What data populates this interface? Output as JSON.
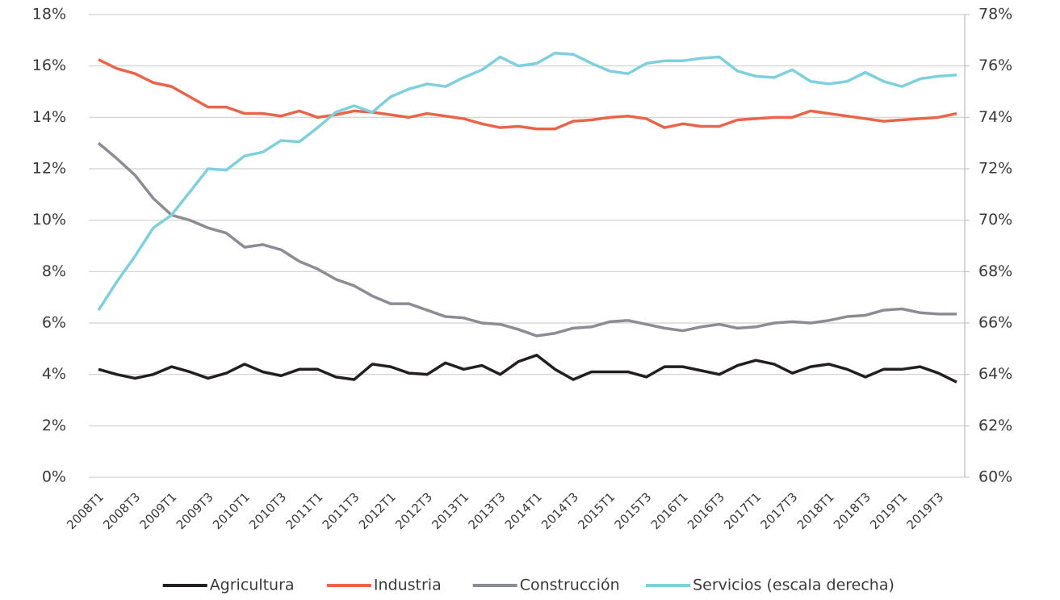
{
  "chart_data": {
    "type": "line",
    "categories": [
      "2008T1",
      null,
      "2008T3",
      null,
      "2009T1",
      null,
      "2009T3",
      null,
      "2010T1",
      null,
      "2010T3",
      null,
      "2011T1",
      null,
      "2011T3",
      null,
      "2012T1",
      null,
      "2012T3",
      null,
      "2013T1",
      null,
      "2013T3",
      null,
      "2014T1",
      null,
      "2014T3",
      null,
      "2015T1",
      null,
      "2015T3",
      null,
      "2016T1",
      null,
      "2016T3",
      null,
      "2017T1",
      null,
      "2017T3",
      null,
      "2018T1",
      null,
      "2018T3",
      null,
      "2019T1",
      null,
      "2019T3",
      null
    ],
    "series": [
      {
        "name": "Agricultura",
        "color": "#231f20",
        "values": [
          4.2,
          4.0,
          3.85,
          4.0,
          4.3,
          4.1,
          3.85,
          4.05,
          4.4,
          4.1,
          3.95,
          4.2,
          4.2,
          3.9,
          3.8,
          4.4,
          4.3,
          4.05,
          4.0,
          4.45,
          4.2,
          4.35,
          4.0,
          4.5,
          4.75,
          4.2,
          3.8,
          4.1,
          4.1,
          4.1,
          3.9,
          4.3,
          4.3,
          4.15,
          4.0,
          4.35,
          4.55,
          4.4,
          4.05,
          4.3,
          4.4,
          4.2,
          3.9,
          4.2,
          4.2,
          4.3,
          4.05,
          3.7
        ]
      },
      {
        "name": "Industria",
        "color": "#e8654a",
        "values": [
          16.25,
          15.9,
          15.7,
          15.35,
          15.2,
          14.8,
          14.4,
          14.4,
          14.15,
          14.15,
          14.05,
          14.25,
          14.0,
          14.1,
          14.25,
          14.2,
          14.1,
          14.0,
          14.15,
          14.05,
          13.95,
          13.75,
          13.6,
          13.65,
          13.55,
          13.55,
          13.85,
          13.9,
          14.0,
          14.05,
          13.95,
          13.6,
          13.75,
          13.65,
          13.65,
          13.9,
          13.95,
          14.0,
          14.0,
          14.25,
          14.15,
          14.05,
          13.95,
          13.85,
          13.9,
          13.95,
          14.0,
          14.15
        ]
      },
      {
        "name": "Construcción",
        "color": "#8c8c94",
        "values": [
          13.0,
          12.4,
          11.75,
          10.85,
          10.2,
          10.0,
          9.7,
          9.5,
          8.95,
          9.05,
          8.85,
          8.4,
          8.1,
          7.7,
          7.45,
          7.05,
          6.75,
          6.75,
          6.5,
          6.25,
          6.2,
          6.0,
          5.95,
          5.75,
          5.5,
          5.6,
          5.8,
          5.85,
          6.05,
          6.1,
          5.95,
          5.8,
          5.7,
          5.85,
          5.95,
          5.8,
          5.85,
          6.0,
          6.05,
          6.0,
          6.1,
          6.25,
          6.3,
          6.5,
          6.55,
          6.4,
          6.35,
          6.35
        ]
      },
      {
        "name": "Servicios (escala derecha)",
        "color": "#7fd0dc",
        "axis": "y2",
        "values": [
          66.5,
          67.6,
          68.6,
          69.7,
          70.2,
          71.1,
          72.0,
          71.95,
          72.5,
          72.65,
          73.1,
          73.05,
          73.6,
          74.2,
          74.45,
          74.2,
          74.8,
          75.1,
          75.3,
          75.2,
          75.55,
          75.85,
          76.35,
          76.0,
          76.1,
          76.5,
          76.45,
          76.1,
          75.8,
          75.7,
          76.1,
          76.2,
          76.2,
          76.3,
          76.35,
          75.8,
          75.6,
          75.55,
          75.85,
          75.4,
          75.3,
          75.4,
          75.75,
          75.4,
          75.2,
          75.5,
          75.6,
          75.65
        ]
      }
    ],
    "ylim": [
      0,
      18
    ],
    "yticks": [
      {
        "value": 0,
        "label": "0%"
      },
      {
        "value": 2,
        "label": "2%"
      },
      {
        "value": 4,
        "label": "4%"
      },
      {
        "value": 6,
        "label": "6%"
      },
      {
        "value": 8,
        "label": "8%"
      },
      {
        "value": 10,
        "label": "10%"
      },
      {
        "value": 12,
        "label": "12%"
      },
      {
        "value": 14,
        "label": "14%"
      },
      {
        "value": 16,
        "label": "16%"
      },
      {
        "value": 18,
        "label": "18%"
      }
    ],
    "y2lim": [
      60,
      78
    ],
    "y2ticks": [
      {
        "value": 60,
        "label": "60%"
      },
      {
        "value": 62,
        "label": "62%"
      },
      {
        "value": 64,
        "label": "64%"
      },
      {
        "value": 66,
        "label": "66%"
      },
      {
        "value": 68,
        "label": "68%"
      },
      {
        "value": 70,
        "label": "70%"
      },
      {
        "value": 72,
        "label": "72%"
      },
      {
        "value": 74,
        "label": "74%"
      },
      {
        "value": 76,
        "label": "76%"
      },
      {
        "value": 78,
        "label": "78%"
      }
    ],
    "grid": true,
    "legend": "bottom"
  }
}
